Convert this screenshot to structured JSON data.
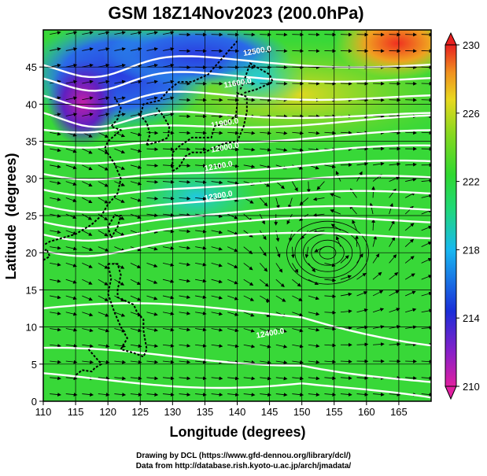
{
  "chart_data": {
    "type": "heatmap",
    "title": "GSM 18Z14Nov2023 (200.0hPa)",
    "xlabel": "Longitude (degrees)",
    "ylabel": "Latitude  (degrees)",
    "xlim": [
      110,
      170
    ],
    "ylim": [
      0,
      50
    ],
    "x_ticks": [
      110,
      115,
      120,
      125,
      130,
      135,
      140,
      145,
      150,
      155,
      160,
      165
    ],
    "y_ticks": [
      0,
      5,
      10,
      15,
      20,
      25,
      30,
      35,
      40,
      45
    ],
    "colorbar": {
      "range": [
        210,
        230
      ],
      "ticks": [
        210,
        214,
        218,
        222,
        226,
        230
      ],
      "colors": [
        "#e020a0",
        "#8820c8",
        "#1a2ed8",
        "#18b8f0",
        "#20d878",
        "#30d830",
        "#88d820",
        "#e8d820",
        "#f09020",
        "#e82020"
      ]
    },
    "contour_labels": [
      "12500.0",
      "11600.0",
      "11900.0",
      "12000.0",
      "12100.0",
      "12300.0",
      "12400.0"
    ],
    "grid": true,
    "annotations": {
      "cyclone_center_lon": 155,
      "cyclone_center_lat": 20
    }
  },
  "credits": {
    "line1": "Drawing by DCL (https://www.gfd-dennou.org/library/dcl/)",
    "line2": "Data from http://database.rish.kyoto-u.ac.jp/arch/jmadata/"
  }
}
